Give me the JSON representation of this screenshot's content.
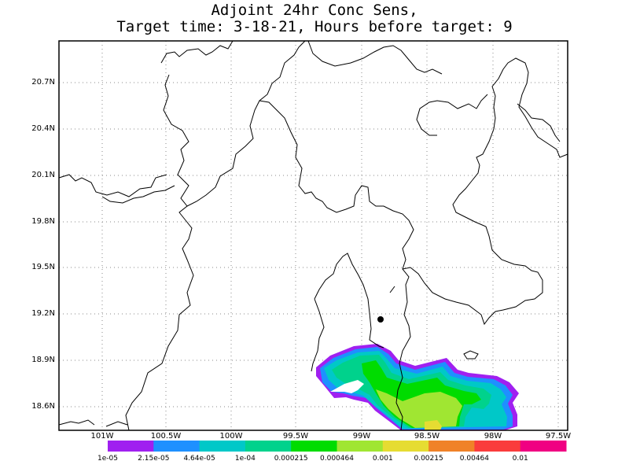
{
  "title": {
    "line1": "Adjoint 24hr Conc Sens,",
    "line2": "Target time: 3-18-21, Hours before target: 9"
  },
  "map": {
    "lat_labels": [
      "20.7N",
      "20.4N",
      "20.1N",
      "19.8N",
      "19.5N",
      "19.2N",
      "18.9N",
      "18.6N"
    ],
    "lon_labels": [
      "101W",
      "100.5W",
      "100W",
      "99.5W",
      "99W",
      "98.5W",
      "98W",
      "97.5W"
    ],
    "colors": {
      "boundary": "#000000",
      "grid": "#888888",
      "target_point": "#000000"
    }
  },
  "colorbar": {
    "labels": [
      "1e-05",
      "2.15e-05",
      "4.64e-05",
      "1e-04",
      "0.000215",
      "0.000464",
      "0.001",
      "0.00215",
      "0.00464",
      "0.01"
    ],
    "colors": [
      "#a020f0",
      "#1e90ff",
      "#00c8c8",
      "#00d28c",
      "#00dc00",
      "#a0e632",
      "#e6dc32",
      "#f08228",
      "#fa3c3c",
      "#f00082"
    ]
  },
  "sensitivity_field": {
    "levels": [
      {
        "threshold": "1e-05",
        "color": "#a020f0"
      },
      {
        "threshold": "2.15e-05",
        "color": "#1e90ff"
      },
      {
        "threshold": "4.64e-05",
        "color": "#00c8c8"
      },
      {
        "threshold": "1e-04",
        "color": "#00d28c"
      },
      {
        "threshold": "0.000215",
        "color": "#00dc00"
      },
      {
        "threshold": "0.000464",
        "color": "#a0e632"
      },
      {
        "threshold": "0.001",
        "color": "#e6dc32"
      }
    ]
  }
}
